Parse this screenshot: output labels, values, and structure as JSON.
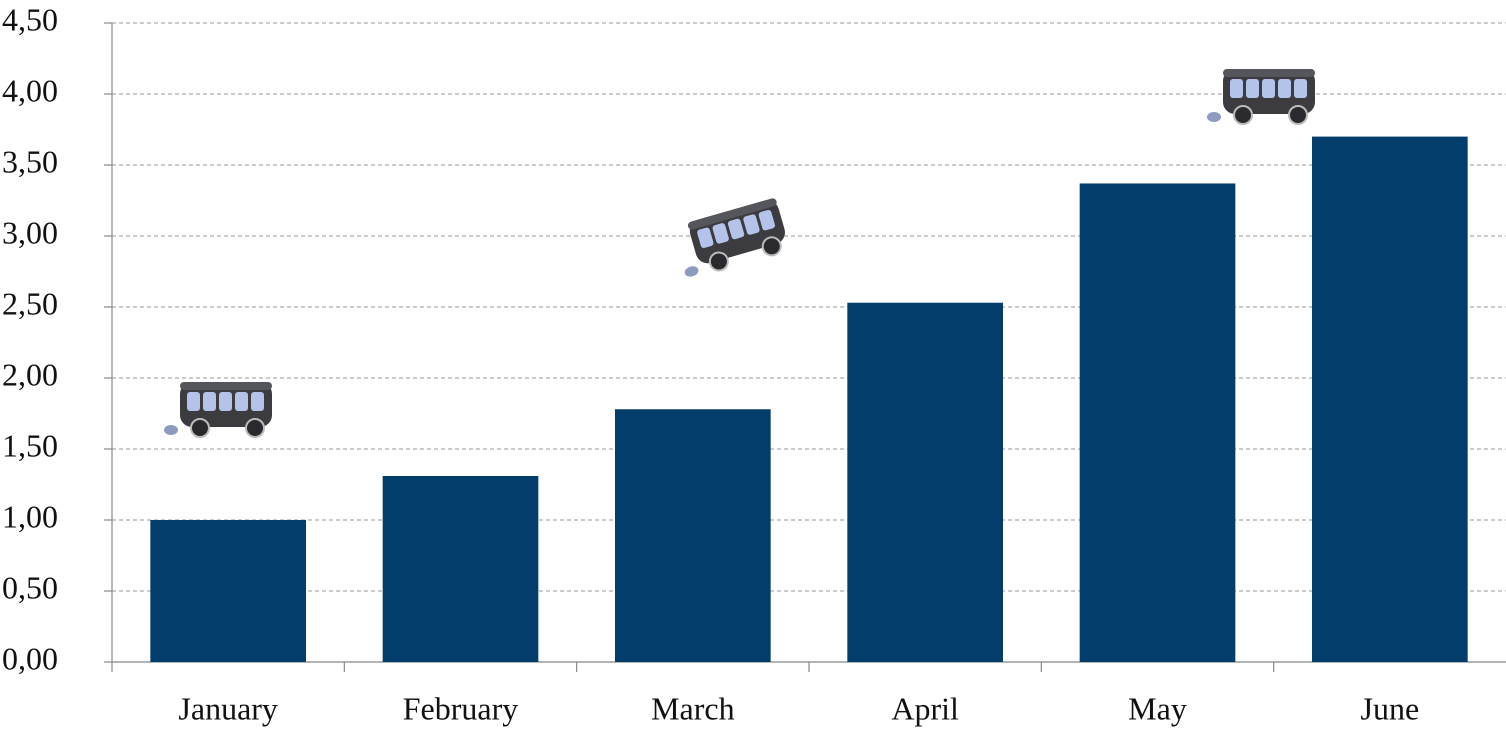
{
  "chart_data": {
    "type": "bar",
    "categories": [
      "January",
      "February",
      "March",
      "April",
      "May",
      "June"
    ],
    "values": [
      1.0,
      1.31,
      1.78,
      2.53,
      3.37,
      3.7
    ],
    "color": "#033d6b",
    "ylim": [
      0,
      4.5
    ],
    "yticks": [
      {
        "value": 0,
        "label": "0,00"
      },
      {
        "value": 0.5,
        "label": "0,50"
      },
      {
        "value": 1,
        "label": "1,00"
      },
      {
        "value": 1.5,
        "label": "1,50"
      },
      {
        "value": 2,
        "label": "2,00"
      },
      {
        "value": 2.5,
        "label": "2,50"
      },
      {
        "value": 3,
        "label": "3,00"
      },
      {
        "value": 3.5,
        "label": "3,50"
      },
      {
        "value": 4,
        "label": "4,00"
      },
      {
        "value": 4.5,
        "label": "4,50"
      }
    ],
    "grid": true
  }
}
